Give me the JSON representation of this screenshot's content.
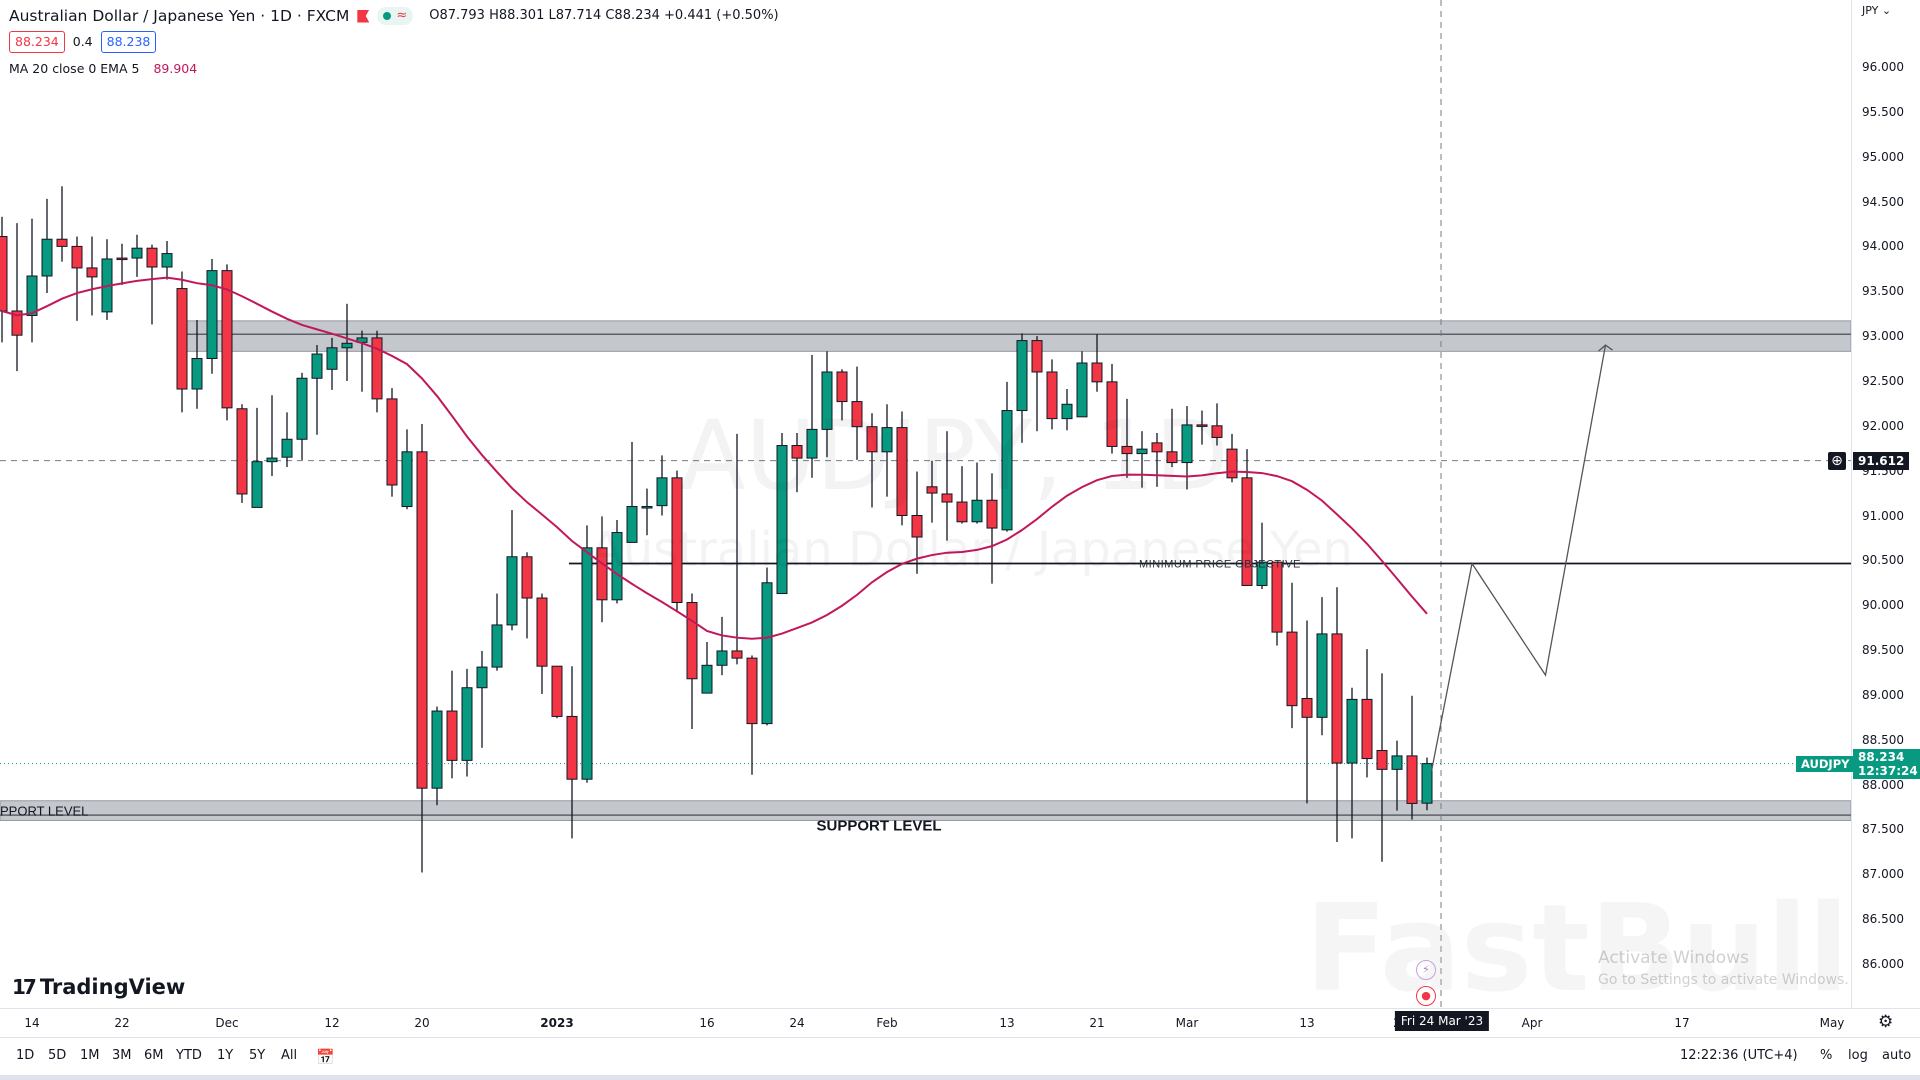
{
  "header": {
    "title": "Australian Dollar / Japanese Yen · 1D · FXCM",
    "ohlc": "O87.793 H88.301 L87.714 C88.234 +0.441 (+0.50%)",
    "bid": "88.234",
    "spread": "0.4",
    "ask": "88.238",
    "indicator_label": "MA 20 close 0 EMA 5",
    "indicator_value": "89.904",
    "market_status_symbol": "≈"
  },
  "watermark": {
    "symbol": "AUDJPY, 1D",
    "name": "Australian Dollar / Japanese Yen"
  },
  "overlay": {
    "fastbull": "FastBull",
    "activate_title": "Activate Windows",
    "activate_sub": "Go to Settings to activate Windows."
  },
  "logo": "TradingView",
  "price_axis": {
    "currency": "JPY",
    "crosshair_price": "91.612",
    "symbol_tag": "AUDJPY",
    "last_price": "88.234",
    "countdown": "12:37:24"
  },
  "time_axis": {
    "crosshair_label": "Fri 24 Mar '23"
  },
  "toolbar": {
    "ranges": [
      "1D",
      "5D",
      "1M",
      "3M",
      "6M",
      "YTD",
      "1Y",
      "5Y",
      "All"
    ],
    "clock": "12:22:36 (UTC+4)",
    "percent": "%",
    "log": "log",
    "auto": "auto"
  },
  "colors": {
    "up": "#089981",
    "down": "#f23645",
    "ma": "#c2185b",
    "zone": "#c4c7cc"
  },
  "chart_data": {
    "type": "candlestick",
    "symbol": "AUDJPY",
    "ylim": [
      85.8,
      96.4
    ],
    "y_ticks": [
      "96.000",
      "95.500",
      "95.000",
      "94.500",
      "94.000",
      "93.500",
      "93.000",
      "92.500",
      "92.000",
      "91.500",
      "91.000",
      "90.500",
      "90.000",
      "89.500",
      "89.000",
      "88.500",
      "88.000",
      "87.500",
      "87.000",
      "86.500",
      "86.000"
    ],
    "x_ticks": [
      {
        "label": "14",
        "bar": 2
      },
      {
        "label": "22",
        "bar": 8
      },
      {
        "label": "Dec",
        "bar": 15
      },
      {
        "label": "12",
        "bar": 22
      },
      {
        "label": "20",
        "bar": 28
      },
      {
        "label": "2023",
        "bar": 37
      },
      {
        "label": "16",
        "bar": 47
      },
      {
        "label": "24",
        "bar": 53
      },
      {
        "label": "Feb",
        "bar": 59
      },
      {
        "label": "13",
        "bar": 67
      },
      {
        "label": "21",
        "bar": 73
      },
      {
        "label": "Mar",
        "bar": 79
      },
      {
        "label": "13",
        "bar": 87
      },
      {
        "label": "2",
        "bar": 93
      },
      {
        "label": "Apr",
        "bar": 102
      },
      {
        "label": "17",
        "bar": 112
      },
      {
        "label": "May",
        "bar": 122
      }
    ],
    "crosshair": {
      "bar": 96,
      "price": 91.612
    },
    "last_price": 88.234,
    "ohlc": [
      [
        94.11,
        94.33,
        92.93,
        93.28
      ],
      [
        93.28,
        94.26,
        92.61,
        93.01
      ],
      [
        93.23,
        94.31,
        92.93,
        93.67
      ],
      [
        93.67,
        94.53,
        93.48,
        94.08
      ],
      [
        94.08,
        94.67,
        93.83,
        94.0
      ],
      [
        94.0,
        94.11,
        93.17,
        93.76
      ],
      [
        93.76,
        94.11,
        93.23,
        93.66
      ],
      [
        93.27,
        94.08,
        93.18,
        93.86
      ],
      [
        93.87,
        94.03,
        93.57,
        93.86
      ],
      [
        93.87,
        94.13,
        93.66,
        93.98
      ],
      [
        93.98,
        94.02,
        93.13,
        93.77
      ],
      [
        93.77,
        94.06,
        93.63,
        93.92
      ],
      [
        93.53,
        93.72,
        92.15,
        92.41
      ],
      [
        92.41,
        93.18,
        92.19,
        92.75
      ],
      [
        92.75,
        93.86,
        92.58,
        93.73
      ],
      [
        93.73,
        93.8,
        92.06,
        92.2
      ],
      [
        92.19,
        92.24,
        91.14,
        91.24
      ],
      [
        91.09,
        92.2,
        91.09,
        91.6
      ],
      [
        91.6,
        92.34,
        91.44,
        91.64
      ],
      [
        91.65,
        92.15,
        91.54,
        91.85
      ],
      [
        91.85,
        92.59,
        91.62,
        92.53
      ],
      [
        92.53,
        92.9,
        91.9,
        92.8
      ],
      [
        92.63,
        92.98,
        92.4,
        92.87
      ],
      [
        92.87,
        93.36,
        92.5,
        92.92
      ],
      [
        92.93,
        93.06,
        92.38,
        92.98
      ],
      [
        92.98,
        93.06,
        92.15,
        92.3
      ],
      [
        92.3,
        92.42,
        91.21,
        91.34
      ],
      [
        91.1,
        91.96,
        91.07,
        91.71
      ],
      [
        91.71,
        92.02,
        87.02,
        87.96
      ],
      [
        87.96,
        88.87,
        87.77,
        88.82
      ],
      [
        88.82,
        89.27,
        88.07,
        88.27
      ],
      [
        88.27,
        89.29,
        88.09,
        89.08
      ],
      [
        89.08,
        89.49,
        88.41,
        89.31
      ],
      [
        89.31,
        90.13,
        89.27,
        89.78
      ],
      [
        89.78,
        91.06,
        89.72,
        90.54
      ],
      [
        90.54,
        90.59,
        89.63,
        90.08
      ],
      [
        90.08,
        90.13,
        89.01,
        89.32
      ],
      [
        89.32,
        89.32,
        88.74,
        88.76
      ],
      [
        88.76,
        89.32,
        87.4,
        88.06
      ],
      [
        88.06,
        90.89,
        88.02,
        90.64
      ],
      [
        90.64,
        90.99,
        89.81,
        90.06
      ],
      [
        90.06,
        90.95,
        90.02,
        90.81
      ],
      [
        90.7,
        91.82,
        90.7,
        91.1
      ],
      [
        91.1,
        91.3,
        90.78,
        91.1
      ],
      [
        91.11,
        91.67,
        91.0,
        91.42
      ],
      [
        91.42,
        91.5,
        89.92,
        90.03
      ],
      [
        90.03,
        90.13,
        88.62,
        89.18
      ],
      [
        89.02,
        89.59,
        89.02,
        89.33
      ],
      [
        89.33,
        89.87,
        89.22,
        89.49
      ],
      [
        89.49,
        91.91,
        89.34,
        89.41
      ],
      [
        89.41,
        89.44,
        88.11,
        88.68
      ],
      [
        88.68,
        90.42,
        88.66,
        90.25
      ],
      [
        90.13,
        91.92,
        90.13,
        91.78
      ],
      [
        91.78,
        91.92,
        91.26,
        91.64
      ],
      [
        91.64,
        92.79,
        91.42,
        91.96
      ],
      [
        91.96,
        92.83,
        91.65,
        92.6
      ],
      [
        92.6,
        92.63,
        92.06,
        92.27
      ],
      [
        92.27,
        92.66,
        91.62,
        91.99
      ],
      [
        91.99,
        92.14,
        91.09,
        91.71
      ],
      [
        91.71,
        92.24,
        91.21,
        91.98
      ],
      [
        91.98,
        92.16,
        90.89,
        91.0
      ],
      [
        91.0,
        91.49,
        90.35,
        90.76
      ],
      [
        91.32,
        91.61,
        90.92,
        91.25
      ],
      [
        91.24,
        91.94,
        90.72,
        91.15
      ],
      [
        91.15,
        91.55,
        90.91,
        90.93
      ],
      [
        90.93,
        91.59,
        90.91,
        91.17
      ],
      [
        91.17,
        91.47,
        90.24,
        90.86
      ],
      [
        90.84,
        92.49,
        90.82,
        92.17
      ],
      [
        92.17,
        93.03,
        91.81,
        92.95
      ],
      [
        92.95,
        93.0,
        91.94,
        92.6
      ],
      [
        92.6,
        92.74,
        91.96,
        92.08
      ],
      [
        92.08,
        92.41,
        91.95,
        92.24
      ],
      [
        92.1,
        92.83,
        92.1,
        92.7
      ],
      [
        92.7,
        93.02,
        92.38,
        92.49
      ],
      [
        92.49,
        92.69,
        91.69,
        91.77
      ],
      [
        91.77,
        92.3,
        91.42,
        91.69
      ],
      [
        91.69,
        91.94,
        91.31,
        91.74
      ],
      [
        91.81,
        91.92,
        91.32,
        91.71
      ],
      [
        91.71,
        92.19,
        91.54,
        91.59
      ],
      [
        91.59,
        92.22,
        91.29,
        92.01
      ],
      [
        92.01,
        92.17,
        91.79,
        92.0
      ],
      [
        92.0,
        92.25,
        91.78,
        91.87
      ],
      [
        91.74,
        91.91,
        91.37,
        91.42
      ],
      [
        91.42,
        91.74,
        90.22,
        90.22
      ],
      [
        90.22,
        90.92,
        90.18,
        90.48
      ],
      [
        90.48,
        90.48,
        89.55,
        89.7
      ],
      [
        89.7,
        90.25,
        88.63,
        88.88
      ],
      [
        88.96,
        89.83,
        87.79,
        88.75
      ],
      [
        88.75,
        90.09,
        88.55,
        89.68
      ],
      [
        89.68,
        90.2,
        87.36,
        88.24
      ],
      [
        88.24,
        89.08,
        87.4,
        88.95
      ],
      [
        88.95,
        89.51,
        88.08,
        88.29
      ],
      [
        88.38,
        89.24,
        87.14,
        88.17
      ],
      [
        88.17,
        88.49,
        87.71,
        88.32
      ],
      [
        88.32,
        88.99,
        87.61,
        87.79
      ],
      [
        87.793,
        88.301,
        87.714,
        88.234
      ]
    ],
    "indicator": {
      "name": "MA 20 close 0 EMA 5",
      "last": 89.904
    },
    "annotations": {
      "resistance_zone": {
        "from_bar": 12.3,
        "top": 93.17,
        "bottom": 92.83,
        "line": 93.02
      },
      "support_zone": {
        "from_bar": 0,
        "top": 87.82,
        "bottom": 87.6,
        "line": 87.66,
        "label": "SUPPORT LEVEL",
        "label_cut": "PPORT LEVEL"
      },
      "support_text": {
        "text": "SUPPORT LEVEL",
        "bar": 54.3,
        "price": 87.49
      },
      "objective_line": {
        "from_bar": 37.8,
        "price": 90.465,
        "label": "MINIMUM PRICE OBJECTIVE"
      },
      "projection": [
        [
          95.3,
          88.15
        ],
        [
          98,
          90.465
        ],
        [
          102.9,
          89.22
        ],
        [
          106.9,
          92.9
        ]
      ]
    }
  }
}
